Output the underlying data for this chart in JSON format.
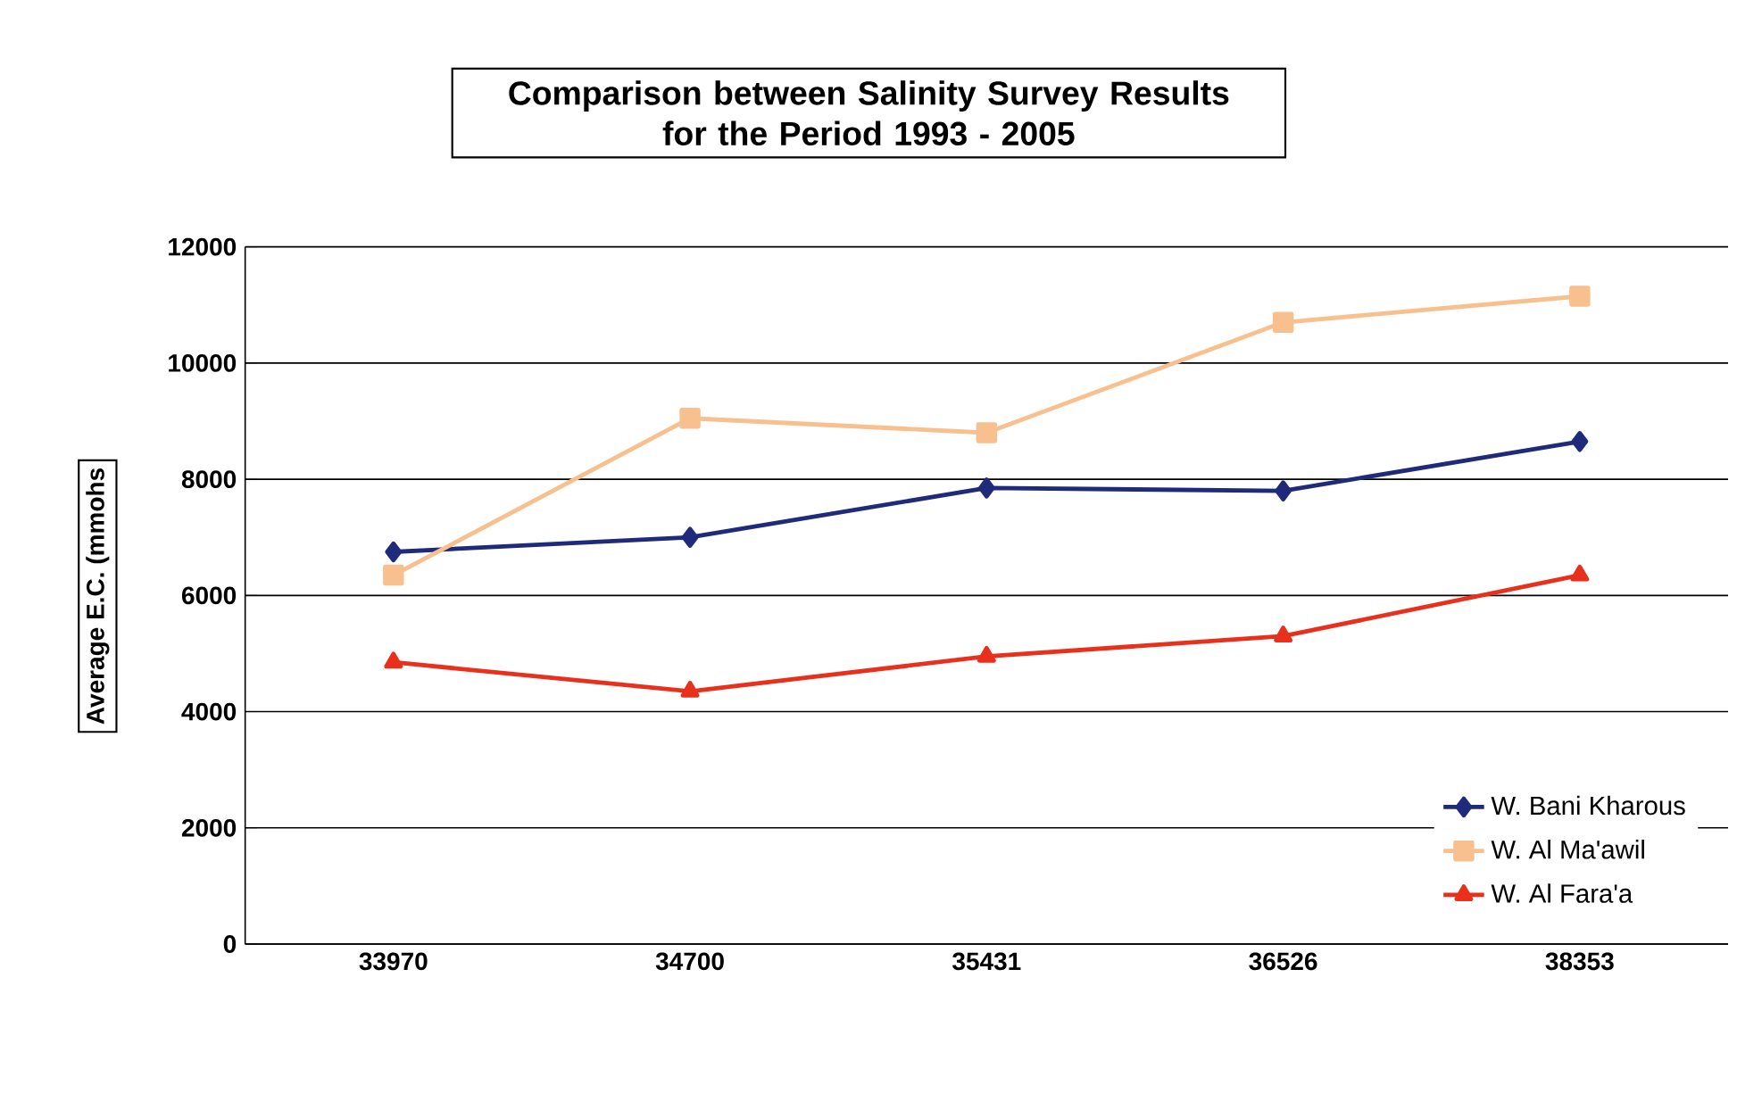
{
  "chart_data": {
    "type": "line",
    "title": "Comparison between Salinity Survey Results\nfor the Period  1993 - 2005",
    "ylabel": "Average E.C. (mmohs",
    "categories": [
      "33970",
      "34700",
      "35431",
      "36526",
      "38353"
    ],
    "series": [
      {
        "name": "W. Bani Kharous",
        "color": "#1f2a7a",
        "marker": "diamond",
        "values": [
          6750,
          7000,
          7850,
          7800,
          8650
        ]
      },
      {
        "name": "W. Al Ma'awil",
        "color": "#f8c08e",
        "marker": "square",
        "values": [
          6350,
          9050,
          8800,
          10700,
          11150
        ]
      },
      {
        "name": "W. Al Fara'a",
        "color": "#e8301c",
        "marker": "triangle",
        "values": [
          4850,
          4350,
          4950,
          5300,
          6350
        ]
      }
    ],
    "ylim": [
      0,
      12000
    ],
    "yticks": [
      0,
      2000,
      4000,
      6000,
      8000,
      10000,
      12000
    ],
    "grid": "y",
    "legend": "bottom right",
    "line_style": "solid"
  }
}
